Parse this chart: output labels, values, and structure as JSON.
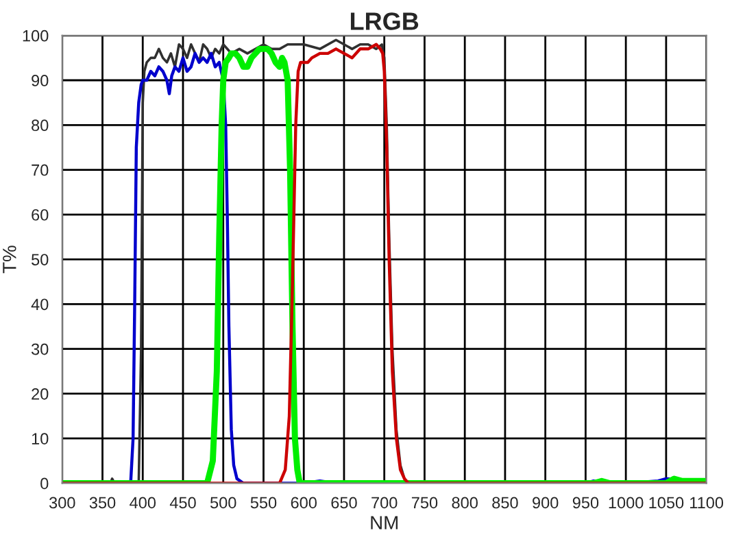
{
  "chart_data": {
    "type": "line",
    "title": "LRGB",
    "xlabel": "NM",
    "ylabel": "T%",
    "xlim": [
      300,
      1100
    ],
    "ylim": [
      0,
      100
    ],
    "xticks": [
      300,
      350,
      400,
      450,
      500,
      550,
      600,
      650,
      700,
      750,
      800,
      850,
      900,
      950,
      1000,
      1050,
      1100
    ],
    "yticks": [
      0,
      10,
      20,
      30,
      40,
      50,
      60,
      70,
      80,
      90,
      100
    ],
    "grid": true,
    "marker": "none",
    "line_style": "solid",
    "series": [
      {
        "color": "#303030",
        "x": [
          300,
          360,
          362,
          365,
          395,
          398,
          400,
          402,
          405,
          410,
          415,
          420,
          425,
          430,
          435,
          440,
          445,
          450,
          455,
          460,
          465,
          470,
          475,
          480,
          485,
          490,
          495,
          500,
          505,
          510,
          520,
          530,
          540,
          550,
          560,
          570,
          580,
          590,
          600,
          620,
          640,
          650,
          660,
          670,
          680,
          690,
          697,
          700,
          703,
          706,
          710,
          715,
          720,
          725,
          730,
          750,
          1100
        ],
        "values": [
          0,
          0,
          1,
          0,
          0,
          30,
          85,
          92,
          94,
          95,
          95,
          97,
          95,
          94,
          96,
          93,
          98,
          97,
          95,
          98,
          96,
          94,
          98,
          97,
          95,
          97,
          96,
          98,
          97,
          96,
          97,
          96,
          97,
          98,
          97,
          97,
          98,
          98,
          98,
          97,
          99,
          98,
          97,
          98,
          98,
          97,
          98,
          95,
          80,
          55,
          30,
          12,
          4,
          1,
          0,
          0,
          0
        ]
      },
      {
        "color": "#0000cc",
        "x": [
          300,
          385,
          388,
          390,
          392,
          395,
          398,
          400,
          405,
          410,
          415,
          420,
          425,
          430,
          433,
          436,
          440,
          445,
          450,
          455,
          460,
          465,
          470,
          475,
          480,
          485,
          490,
          495,
          500,
          503,
          505,
          507,
          510,
          513,
          517,
          525,
          550,
          560,
          600,
          620,
          640,
          700,
          800,
          900,
          950,
          960,
          970,
          1000,
          1040,
          1050,
          1060,
          1100
        ],
        "values": [
          0,
          0,
          10,
          40,
          75,
          85,
          89,
          90,
          90,
          92,
          91,
          93,
          92,
          90,
          87,
          91,
          93,
          92,
          95,
          92,
          93,
          96,
          94,
          95,
          94,
          96,
          93,
          94,
          90,
          80,
          60,
          35,
          12,
          4,
          1,
          0,
          0,
          0,
          0,
          0.5,
          0,
          0,
          0,
          0,
          0,
          0.5,
          0,
          0,
          0.5,
          1,
          null,
          0.5
        ]
      },
      {
        "color": "#00ee00",
        "x": [
          300,
          480,
          487,
          492,
          495,
          498,
          500,
          503,
          507,
          510,
          515,
          520,
          525,
          530,
          535,
          540,
          545,
          550,
          555,
          560,
          565,
          570,
          573,
          576,
          580,
          583,
          586,
          589,
          592,
          595,
          600,
          700,
          900,
          960,
          970,
          980,
          1050,
          1060,
          1070,
          1100
        ],
        "values": [
          0,
          0,
          5,
          25,
          55,
          80,
          90,
          94,
          95,
          96,
          96,
          95,
          93,
          93,
          95,
          96,
          97,
          97,
          97,
          96,
          94,
          93,
          95,
          94,
          90,
          70,
          35,
          10,
          3,
          0,
          0,
          0,
          0,
          0,
          0.5,
          0,
          0,
          1,
          0.5,
          0.5
        ]
      },
      {
        "color": "#cc0000",
        "x": [
          300,
          570,
          577,
          582,
          586,
          590,
          593,
          596,
          600,
          605,
          610,
          620,
          630,
          640,
          650,
          660,
          670,
          680,
          690,
          695,
          698,
          700,
          703,
          706,
          710,
          715,
          720,
          725,
          730,
          750,
          1100
        ],
        "values": [
          0,
          0,
          3,
          15,
          45,
          80,
          92,
          94,
          94,
          94,
          95,
          96,
          96,
          97,
          96,
          95,
          97,
          97,
          98,
          97,
          96,
          92,
          75,
          50,
          25,
          10,
          3,
          1,
          0,
          0,
          0
        ]
      }
    ]
  }
}
